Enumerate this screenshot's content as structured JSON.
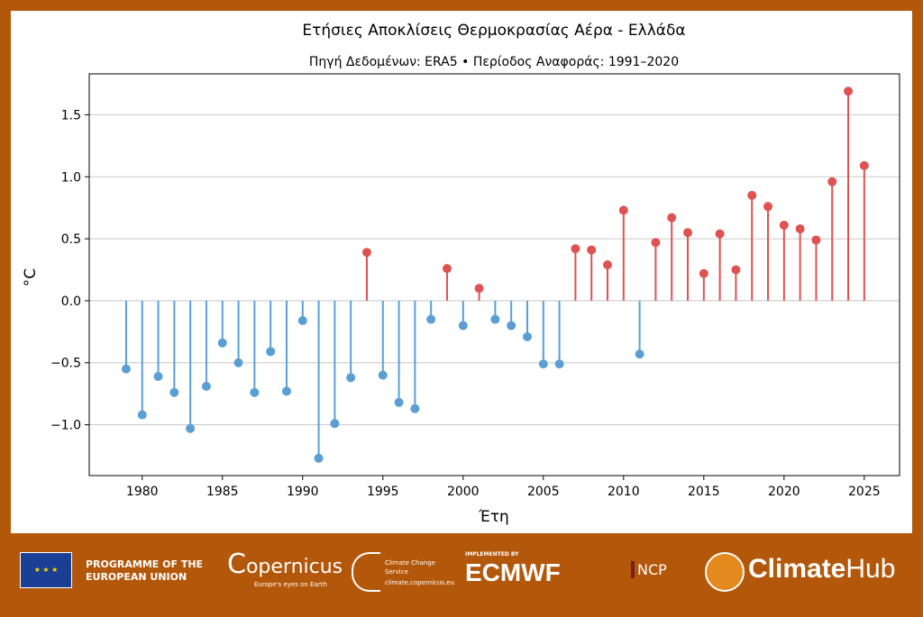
{
  "chart_data": {
    "type": "stem",
    "title": "Ετήσιες Αποκλίσεις Θερμοκρασίας Αέρα - Ελλάδα",
    "subtitle": "Πηγή Δεδομένων: ERA5 • Περίοδος Αναφοράς: 1991–2020",
    "xlabel": "Έτη",
    "ylabel": "°C",
    "xlim": [
      1976.7,
      2027.2
    ],
    "ylim": [
      -1.41,
      1.83
    ],
    "xticks": [
      1980,
      1985,
      1990,
      1995,
      2000,
      2005,
      2010,
      2015,
      2020,
      2025
    ],
    "yticks": [
      -1.0,
      -0.5,
      0.0,
      0.5,
      1.0,
      1.5
    ],
    "ytick_labels": [
      "−1.0",
      "−0.5",
      "0.0",
      "0.5",
      "1.0",
      "1.5"
    ],
    "grid": "horizontal",
    "colors": {
      "positive": "#e05252",
      "negative": "#5a9fd4"
    },
    "x": [
      1979,
      1980,
      1981,
      1982,
      1983,
      1984,
      1985,
      1986,
      1987,
      1988,
      1989,
      1990,
      1991,
      1992,
      1993,
      1994,
      1995,
      1996,
      1997,
      1998,
      1999,
      2000,
      2001,
      2002,
      2003,
      2004,
      2005,
      2006,
      2007,
      2008,
      2009,
      2010,
      2011,
      2012,
      2013,
      2014,
      2015,
      2016,
      2017,
      2018,
      2019,
      2020,
      2021,
      2022,
      2023,
      2024,
      2025
    ],
    "values": [
      -0.55,
      -0.92,
      -0.61,
      -0.74,
      -1.03,
      -0.69,
      -0.34,
      -0.5,
      -0.74,
      -0.41,
      -0.73,
      -0.16,
      -1.27,
      -0.99,
      -0.62,
      0.39,
      -0.6,
      -0.82,
      -0.87,
      -0.15,
      0.26,
      -0.2,
      0.1,
      -0.15,
      -0.2,
      -0.29,
      -0.51,
      -0.51,
      0.42,
      0.41,
      0.29,
      0.73,
      -0.43,
      0.47,
      0.67,
      0.55,
      0.22,
      0.54,
      0.25,
      0.85,
      0.76,
      0.61,
      0.58,
      0.49,
      0.96,
      1.69,
      1.09
    ]
  },
  "footer": {
    "eu": "PROGRAMME OF THE EUROPEAN UNION",
    "copernicus": "opernicus",
    "copernicus_tag": "Europe's eyes on Earth",
    "c3s": "Climate Change Service",
    "c3s_url": "climate.copernicus.eu",
    "ecmwf_pre": "IMPLEMENTED BY",
    "ecmwf": "ECMWF",
    "ncp": "NCP",
    "climatehub_a": "Climate",
    "climatehub_b": "Hub",
    "bg": "#b3570a"
  }
}
